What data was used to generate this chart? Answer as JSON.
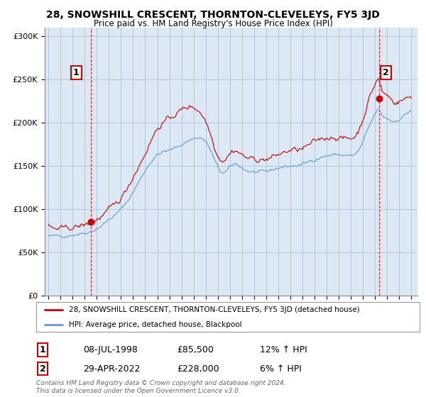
{
  "title": "28, SNOWSHILL CRESCENT, THORNTON-CLEVELEYS, FY5 3JD",
  "subtitle": "Price paid vs. HM Land Registry's House Price Index (HPI)",
  "bg_color": "#ffffff",
  "plot_bg_color": "#dce9f5",
  "grid_color": "#b0c8e0",
  "red_color": "#cc0000",
  "blue_color": "#6699cc",
  "legend_line1": "28, SNOWSHILL CRESCENT, THORNTON-CLEVELEYS, FY5 3JD (detached house)",
  "legend_line2": "HPI: Average price, detached house, Blackpool",
  "transaction1_x": 1998.54,
  "transaction1_y": 85500,
  "transaction1_label": "1",
  "transaction2_x": 2022.32,
  "transaction2_y": 228000,
  "transaction2_label": "2",
  "xmin": 1994.7,
  "xmax": 2025.5,
  "ymin": 0,
  "ymax": 310000,
  "yticks": [
    0,
    50000,
    100000,
    150000,
    200000,
    250000,
    300000
  ],
  "ytick_labels": [
    "£0",
    "£50K",
    "£100K",
    "£150K",
    "£200K",
    "£250K",
    "£300K"
  ],
  "xticks": [
    1995,
    1996,
    1997,
    1998,
    1999,
    2000,
    2001,
    2002,
    2003,
    2004,
    2005,
    2006,
    2007,
    2008,
    2009,
    2010,
    2011,
    2012,
    2013,
    2014,
    2015,
    2016,
    2017,
    2018,
    2019,
    2020,
    2021,
    2022,
    2023,
    2024,
    2025
  ],
  "table_row1_num": "1",
  "table_row1_date": "08-JUL-1998",
  "table_row1_price": "£85,500",
  "table_row1_hpi": "12% ↑ HPI",
  "table_row2_num": "2",
  "table_row2_date": "29-APR-2022",
  "table_row2_price": "£228,000",
  "table_row2_hpi": "6% ↑ HPI",
  "footer": "Contains HM Land Registry data © Crown copyright and database right 2024.\nThis data is licensed under the Open Government Licence v3.0."
}
